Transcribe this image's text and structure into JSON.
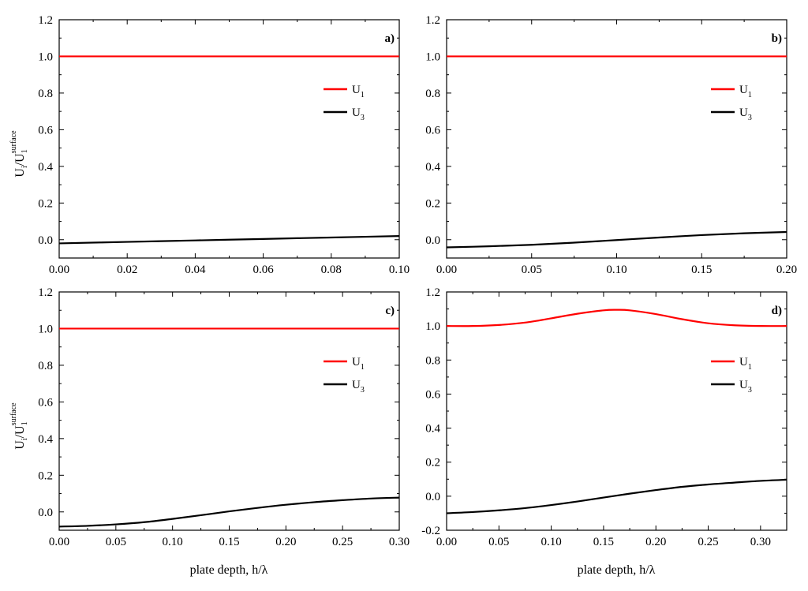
{
  "figure": {
    "xlabel": "plate depth, h/λ",
    "ylabel_main": "U",
    "ylabel_sub_i": "i",
    "ylabel_slash": "/U",
    "ylabel_sub_1": "1",
    "ylabel_sup": "surface"
  },
  "chart_data": [
    {
      "type": "line",
      "panel": "a)",
      "xlim": [
        0,
        0.1
      ],
      "ylim": [
        -0.1,
        1.2
      ],
      "xticks": [
        0.0,
        0.02,
        0.04,
        0.06,
        0.08,
        0.1
      ],
      "xtick_labels": [
        "0.00",
        "0.02",
        "0.04",
        "0.06",
        "0.08",
        "0.10"
      ],
      "yticks": [
        0.0,
        0.2,
        0.4,
        0.6,
        0.8,
        1.0,
        1.2
      ],
      "ytick_labels": [
        "0.0",
        "0.2",
        "0.4",
        "0.6",
        "0.8",
        "1.0",
        "1.2"
      ],
      "legend_position": "upper-right",
      "series": [
        {
          "name": "U1",
          "label_main": "U",
          "label_sub": "1",
          "color": "#ff0000",
          "x": [
            0,
            0.02,
            0.04,
            0.06,
            0.08,
            0.1
          ],
          "y": [
            1.0,
            1.0,
            1.0,
            1.0,
            1.0,
            1.0
          ]
        },
        {
          "name": "U3",
          "label_main": "U",
          "label_sub": "3",
          "color": "#000000",
          "x": [
            0,
            0.02,
            0.04,
            0.06,
            0.08,
            0.1
          ],
          "y": [
            -0.02,
            -0.012,
            -0.004,
            0.004,
            0.012,
            0.02
          ]
        }
      ]
    },
    {
      "type": "line",
      "panel": "b)",
      "xlim": [
        0,
        0.2
      ],
      "ylim": [
        -0.1,
        1.2
      ],
      "xticks": [
        0.0,
        0.05,
        0.1,
        0.15,
        0.2
      ],
      "xtick_labels": [
        "0.00",
        "0.05",
        "0.10",
        "0.15",
        "0.20"
      ],
      "yticks": [
        0.0,
        0.2,
        0.4,
        0.6,
        0.8,
        1.0,
        1.2
      ],
      "ytick_labels": [
        "0.0",
        "0.2",
        "0.4",
        "0.6",
        "0.8",
        "1.0",
        "1.2"
      ],
      "legend_position": "upper-right",
      "series": [
        {
          "name": "U1",
          "label_main": "U",
          "label_sub": "1",
          "color": "#ff0000",
          "x": [
            0,
            0.05,
            0.1,
            0.15,
            0.2
          ],
          "y": [
            1.0,
            1.0,
            1.0,
            1.0,
            1.0
          ]
        },
        {
          "name": "U3",
          "label_main": "U",
          "label_sub": "3",
          "color": "#000000",
          "x": [
            0,
            0.025,
            0.05,
            0.075,
            0.1,
            0.125,
            0.15,
            0.175,
            0.2
          ],
          "y": [
            -0.042,
            -0.036,
            -0.028,
            -0.016,
            -0.002,
            0.012,
            0.025,
            0.035,
            0.042
          ]
        }
      ]
    },
    {
      "type": "line",
      "panel": "c)",
      "xlim": [
        0,
        0.3
      ],
      "ylim": [
        -0.1,
        1.2
      ],
      "xticks": [
        0.0,
        0.05,
        0.1,
        0.15,
        0.2,
        0.25,
        0.3
      ],
      "xtick_labels": [
        "0.00",
        "0.05",
        "0.10",
        "0.15",
        "0.20",
        "0.25",
        "0.30"
      ],
      "yticks": [
        0.0,
        0.2,
        0.4,
        0.6,
        0.8,
        1.0,
        1.2
      ],
      "ytick_labels": [
        "0.0",
        "0.2",
        "0.4",
        "0.6",
        "0.8",
        "1.0",
        "1.2"
      ],
      "legend_position": "upper-right",
      "series": [
        {
          "name": "U1",
          "label_main": "U",
          "label_sub": "1",
          "color": "#ff0000",
          "x": [
            0,
            0.05,
            0.1,
            0.15,
            0.2,
            0.25,
            0.3
          ],
          "y": [
            1.0,
            1.0,
            1.0,
            1.0,
            1.0,
            1.0,
            1.0
          ]
        },
        {
          "name": "U3",
          "label_main": "U",
          "label_sub": "3",
          "color": "#000000",
          "x": [
            0,
            0.025,
            0.05,
            0.075,
            0.1,
            0.125,
            0.15,
            0.175,
            0.2,
            0.225,
            0.25,
            0.275,
            0.3
          ],
          "y": [
            -0.08,
            -0.076,
            -0.068,
            -0.056,
            -0.038,
            -0.018,
            0.003,
            0.022,
            0.039,
            0.053,
            0.064,
            0.073,
            0.078
          ]
        }
      ]
    },
    {
      "type": "line",
      "panel": "d)",
      "xlim": [
        0,
        0.325
      ],
      "ylim": [
        -0.2,
        1.2
      ],
      "xticks": [
        0.0,
        0.05,
        0.1,
        0.15,
        0.2,
        0.25,
        0.3
      ],
      "xtick_labels": [
        "0.00",
        "0.05",
        "0.10",
        "0.15",
        "0.20",
        "0.25",
        "0.30"
      ],
      "yticks": [
        -0.2,
        0.0,
        0.2,
        0.4,
        0.6,
        0.8,
        1.0,
        1.2
      ],
      "ytick_labels": [
        "-0.2",
        "0.0",
        "0.2",
        "0.4",
        "0.6",
        "0.8",
        "1.0",
        "1.2"
      ],
      "legend_position": "upper-right",
      "series": [
        {
          "name": "U1",
          "label_main": "U",
          "label_sub": "1",
          "color": "#ff0000",
          "x": [
            0,
            0.025,
            0.05,
            0.075,
            0.1,
            0.125,
            0.15,
            0.1625,
            0.175,
            0.2,
            0.225,
            0.25,
            0.275,
            0.3,
            0.325
          ],
          "y": [
            1.0,
            1.0,
            1.006,
            1.02,
            1.045,
            1.072,
            1.092,
            1.095,
            1.092,
            1.07,
            1.04,
            1.016,
            1.004,
            1.0,
            1.0
          ]
        },
        {
          "name": "U3",
          "label_main": "U",
          "label_sub": "3",
          "color": "#000000",
          "x": [
            0,
            0.025,
            0.05,
            0.075,
            0.1,
            0.125,
            0.15,
            0.175,
            0.2,
            0.225,
            0.25,
            0.275,
            0.3,
            0.325
          ],
          "y": [
            -0.1,
            -0.093,
            -0.083,
            -0.07,
            -0.052,
            -0.031,
            -0.008,
            0.015,
            0.036,
            0.055,
            0.069,
            0.08,
            0.09,
            0.097
          ]
        }
      ]
    }
  ]
}
